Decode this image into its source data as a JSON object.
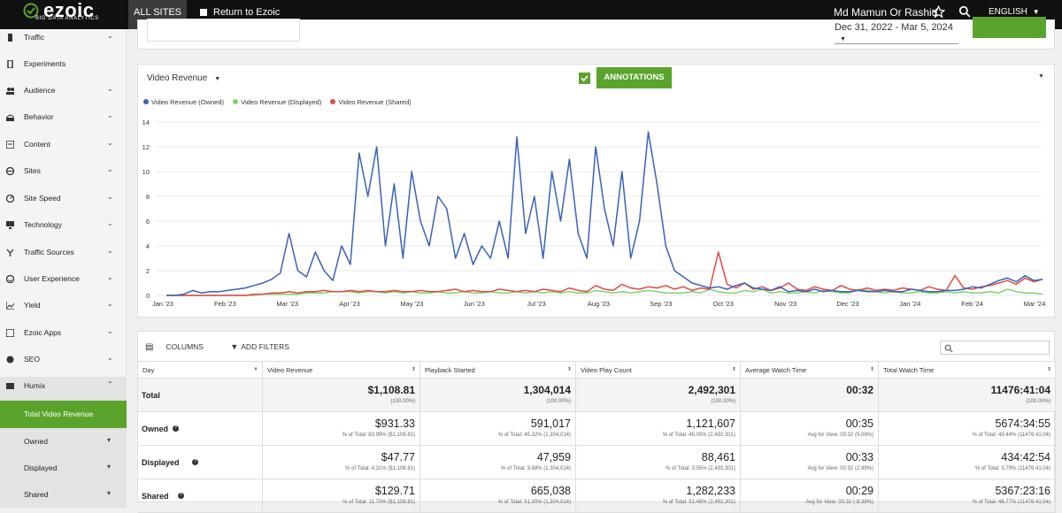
{
  "header": {
    "logo_text": "ezoic",
    "logo_sub": "BIG DATA ANALYTICS",
    "all_sites": "ALL SITES",
    "return_label": "Return to Ezoic",
    "user_name": "Md Mamun Or Rashid",
    "language": "ENGLISH",
    "icons": [
      "star-icon",
      "search-icon",
      "chevron-down-icon"
    ]
  },
  "sidebar": {
    "items": [
      {
        "label": "Traffic",
        "icon": "traffic-icon",
        "chevron": "⌄"
      },
      {
        "label": "Experiments",
        "icon": "flask-icon",
        "chevron": ""
      },
      {
        "label": "Audience",
        "icon": "people-icon",
        "chevron": "⌄"
      },
      {
        "label": "Behavior",
        "icon": "behavior-icon",
        "chevron": "⌄"
      },
      {
        "label": "Content",
        "icon": "content-icon",
        "chevron": "⌄"
      },
      {
        "label": "Sites",
        "icon": "globe-icon",
        "chevron": "⌄"
      },
      {
        "label": "Site Speed",
        "icon": "speed-icon",
        "chevron": "⌄"
      },
      {
        "label": "Technology",
        "icon": "tech-icon",
        "chevron": "⌄"
      },
      {
        "label": "Traffic Sources",
        "icon": "sources-icon",
        "chevron": "⌄"
      },
      {
        "label": "User Experience",
        "icon": "smile-icon",
        "chevron": "⌄"
      },
      {
        "label": "Yield",
        "icon": "chart-icon",
        "chevron": "⌄"
      },
      {
        "label": "Ezoic Apps",
        "icon": "apps-icon",
        "chevron": "⌄"
      },
      {
        "label": "SEO",
        "icon": "seo-icon",
        "chevron": "⌄"
      },
      {
        "label": "Humix",
        "icon": "film-icon",
        "chevron": "⌃"
      }
    ],
    "active": "Total Video Revenue",
    "subitems": [
      {
        "label": "Owned",
        "chevron": "▾"
      },
      {
        "label": "Displayed",
        "chevron": "▾"
      },
      {
        "label": "Shared",
        "chevron": "▾"
      }
    ]
  },
  "toolbar": {
    "date_range": "Dec 31, 2022 - Mar 5, 2024"
  },
  "chart_card": {
    "metric_dropdown": "Video Revenue",
    "annotations_label": "ANNOTATIONS",
    "colors": {
      "owned": "#3a62b8",
      "displayed": "#7fd36e",
      "shared": "#e34848"
    }
  },
  "chart_data": {
    "type": "line",
    "x_ticks": [
      "Jan '23",
      "Feb '23",
      "Mar '23",
      "Apr '23",
      "May '23",
      "Jun '23",
      "Jul '23",
      "Aug '23",
      "Sep '23",
      "Oct '23",
      "Nov '23",
      "Dec '23",
      "Jan '24",
      "Feb '24",
      "Mar '24"
    ],
    "y_ticks": [
      "0",
      "2",
      "4",
      "6",
      "8",
      "10",
      "12",
      "14"
    ],
    "ylim": [
      0,
      14
    ],
    "grid": true,
    "legend": "top-left",
    "series": [
      {
        "name": "Video Revenue (Owned)",
        "values": [
          0,
          0,
          0.1,
          0.4,
          0.2,
          0.3,
          0.3,
          0.4,
          0.5,
          0.6,
          0.8,
          1,
          1.3,
          1.8,
          5,
          2,
          1.5,
          3.5,
          2,
          1.2,
          4,
          2.5,
          11.5,
          8,
          12,
          4,
          9,
          3,
          10,
          6,
          4,
          8,
          7,
          3,
          5,
          2.5,
          4,
          3,
          6,
          3,
          12.8,
          5,
          8,
          3,
          10,
          6,
          11,
          5,
          3,
          12,
          7,
          4,
          10,
          3,
          6,
          13.2,
          9,
          4,
          2,
          1.5,
          1,
          0.8,
          0.6,
          0.7,
          0.5,
          0.8,
          1,
          0.6,
          0.5,
          0.4,
          0.7,
          0.3,
          0.4,
          0.3,
          0.5,
          0.3,
          0.4,
          0.3,
          0.3,
          0.4,
          0.3,
          0.3,
          0.4,
          0.3,
          0.3,
          0.5,
          0.4,
          0.3,
          0.3,
          0.4,
          0.4,
          0.5,
          0.7,
          0.6,
          0.9,
          1.2,
          1.4,
          1.1,
          1.6,
          1.2,
          1.3
        ]
      },
      {
        "name": "Video Revenue (Displayed)",
        "values": [
          0,
          0,
          0,
          0,
          0,
          0,
          0,
          0,
          0,
          0,
          0,
          0.1,
          0.1,
          0.1,
          0.1,
          0.1,
          0.2,
          0.2,
          0.2,
          0.3,
          0.3,
          0.3,
          0.2,
          0.3,
          0.3,
          0.2,
          0.3,
          0.2,
          0.3,
          0.2,
          0.2,
          0.3,
          0.2,
          0.2,
          0.3,
          0.2,
          0.2,
          0.3,
          0.2,
          0.2,
          0.3,
          0.2,
          0.3,
          0.2,
          0.3,
          0.2,
          0.3,
          0.2,
          0.2,
          0.4,
          0.3,
          0.2,
          0.3,
          0.2,
          0.3,
          0.4,
          0.3,
          0.2,
          0.2,
          0.2,
          0.3,
          0.2,
          0.5,
          0.3,
          0.2,
          0.2,
          0.4,
          0.3,
          0.5,
          0.2,
          0.3,
          0.2,
          0.2,
          0.3,
          0.2,
          0.4,
          0.3,
          0.2,
          0.2,
          0.5,
          0.4,
          0.3,
          0.2,
          0.3,
          0.2,
          0.2,
          0.3,
          0.2,
          0.2,
          0.3,
          0.2,
          0.3,
          0.2,
          0.2,
          0.3,
          0.2,
          0.5,
          0.3,
          0.2,
          0.2,
          0.1
        ]
      },
      {
        "name": "Video Revenue (Shared)",
        "values": [
          0,
          0,
          0,
          0,
          0,
          0,
          0,
          0,
          0,
          0,
          0.1,
          0.1,
          0.2,
          0.2,
          0.3,
          0.2,
          0.3,
          0.3,
          0.4,
          0.3,
          0.3,
          0.4,
          0.3,
          0.4,
          0.3,
          0.3,
          0.4,
          0.3,
          0.3,
          0.4,
          0.3,
          0.3,
          0.4,
          0.5,
          0.3,
          0.4,
          0.3,
          0.3,
          0.5,
          0.4,
          0.3,
          0.4,
          0.3,
          0.5,
          0.4,
          0.3,
          0.6,
          0.4,
          0.3,
          0.8,
          0.5,
          0.4,
          0.9,
          0.6,
          0.5,
          0.7,
          0.6,
          0.8,
          0.5,
          0.7,
          0.4,
          0.6,
          0.5,
          3.5,
          0.9,
          0.6,
          1,
          0.5,
          0.7,
          0.4,
          0.6,
          1,
          0.5,
          0.4,
          0.7,
          0.5,
          0.4,
          0.8,
          0.5,
          0.4,
          0.6,
          0.4,
          0.5,
          0.4,
          0.6,
          0.5,
          0.4,
          0.7,
          0.5,
          0.4,
          1.6,
          0.6,
          0.5,
          0.7,
          0.8,
          1,
          1.2,
          0.9,
          1.4,
          1.1,
          1.3
        ]
      }
    ]
  },
  "table": {
    "columns_label": "COLUMNS",
    "filters_label": "ADD FILTERS",
    "headers": [
      "Day",
      "Video Revenue",
      "Playback Started",
      "Video Play Count",
      "Average Watch Time",
      "Total Watch Time"
    ],
    "rows": [
      {
        "label": "Total",
        "help": false,
        "cells": [
          {
            "main": "$1,108.81",
            "sub": "(100.00%)"
          },
          {
            "main": "1,304,014",
            "sub": "(100.00%)"
          },
          {
            "main": "2,492,301",
            "sub": "(100.00%)"
          },
          {
            "main": "00:32",
            "sub": ""
          },
          {
            "main": "11476:41:04",
            "sub": "(100.00%)"
          }
        ]
      },
      {
        "label": "Owned",
        "help": true,
        "cells": [
          {
            "main": "$931.33",
            "sub": "% of Total: 83.99% ($1,108.81)"
          },
          {
            "main": "591,017",
            "sub": "% of Total: 45.32% (1,304,014)"
          },
          {
            "main": "1,121,607",
            "sub": "% of Total: 45.00% (2,492,301)"
          },
          {
            "main": "00:35",
            "sub": "Avg for View: 00:32 (9.09%)"
          },
          {
            "main": "5674:34:55",
            "sub": "% of Total: 49.44% (11476:41:04)"
          }
        ]
      },
      {
        "label": "Displayed",
        "help": true,
        "cells": [
          {
            "main": "$47.77",
            "sub": "% of Total: 4.31% ($1,108.81)"
          },
          {
            "main": "47,959",
            "sub": "% of Total: 3.68% (1,304,014)"
          },
          {
            "main": "88,461",
            "sub": "% of Total: 3.55% (2,492,301)"
          },
          {
            "main": "00:33",
            "sub": "Avg for View: 00:32 (2.99%)"
          },
          {
            "main": "434:42:54",
            "sub": "% of Total: 3.79% (11476:41:04)"
          }
        ]
      },
      {
        "label": "Shared",
        "help": true,
        "cells": [
          {
            "main": "$129.71",
            "sub": "% of Total: 11.70% ($1,108.81)"
          },
          {
            "main": "665,038",
            "sub": "% of Total: 51.00% (1,304,014)"
          },
          {
            "main": "1,282,233",
            "sub": "% of Total: 51.45% (2,492,301)"
          },
          {
            "main": "00:29",
            "sub": "Avg for View: 00:32 (-8.39%)"
          },
          {
            "main": "5367:23:16",
            "sub": "% of Total: 46.77% (11476:41:04)"
          }
        ]
      }
    ]
  }
}
